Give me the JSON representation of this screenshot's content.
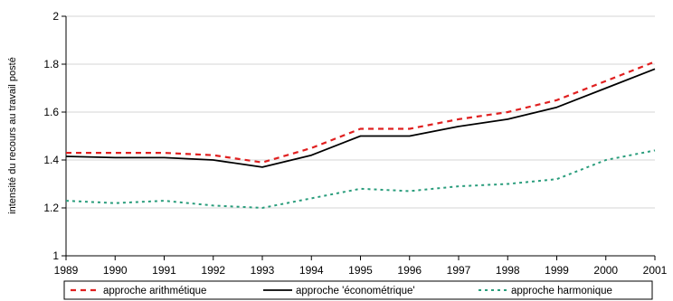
{
  "chart_data": {
    "type": "line",
    "title": "",
    "xlabel": "",
    "ylabel": "intensité du recours au travail posté",
    "x": [
      "1989",
      "1990",
      "1991",
      "1992",
      "1993",
      "1994",
      "1995",
      "1996",
      "1997",
      "1998",
      "1999",
      "2000",
      "2001"
    ],
    "ylim": [
      1,
      2
    ],
    "yticks": [
      "1",
      "1.2",
      "1.4",
      "1.6",
      "1.8",
      "2"
    ],
    "grid": "horizontal",
    "legend_position": "bottom",
    "series": [
      {
        "name": "approche arithmétique",
        "style": "dashed",
        "color": "#e02020",
        "values": [
          1.43,
          1.43,
          1.43,
          1.42,
          1.39,
          1.45,
          1.53,
          1.53,
          1.57,
          1.6,
          1.65,
          1.73,
          1.81
        ]
      },
      {
        "name": "approche 'économétrique'",
        "style": "solid",
        "color": "#000000",
        "values": [
          1.415,
          1.41,
          1.41,
          1.4,
          1.37,
          1.42,
          1.5,
          1.5,
          1.54,
          1.57,
          1.62,
          1.7,
          1.78
        ]
      },
      {
        "name": "approche harmonique",
        "style": "dotted",
        "color": "#2a9d7c",
        "values": [
          1.23,
          1.22,
          1.23,
          1.21,
          1.2,
          1.24,
          1.28,
          1.27,
          1.29,
          1.3,
          1.32,
          1.4,
          1.44
        ]
      }
    ]
  }
}
